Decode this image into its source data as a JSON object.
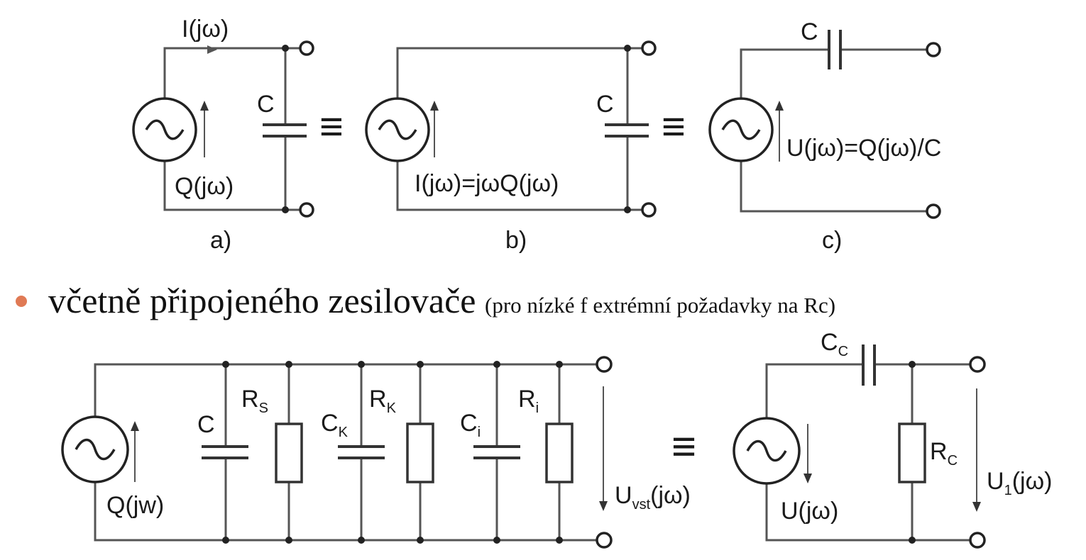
{
  "diagram_a": {
    "current_label": "I(jω)",
    "charge_label": "Q(jω)",
    "cap_label": "C",
    "caption": "a)"
  },
  "diagram_b": {
    "relation_label": "I(jω)=jωQ(jω)",
    "cap_label": "C",
    "caption": "b)"
  },
  "diagram_c": {
    "cap_label": "C",
    "voltage_label": "U(jω)=Q(jω)/C",
    "caption": "c)"
  },
  "equivalence_symbol": "≡",
  "bullet": {
    "main_text": "včetně připojeného zesilovače",
    "note_text": "(pro nízké f extrémní požadavky na Rc)"
  },
  "diagram_d": {
    "source_label": "Q(jw)",
    "c_label": "C",
    "rs_label": "R",
    "rs_sub": "S",
    "ck_label": "C",
    "ck_sub": "K",
    "rk_label": "R",
    "rk_sub": "K",
    "ci_label": "C",
    "ci_sub": "i",
    "ri_label": "R",
    "ri_sub": "i",
    "out_label": "U",
    "out_sub": "vst",
    "out_suffix": "(jω)"
  },
  "diagram_e": {
    "cc_label": "C",
    "cc_sub": "C",
    "source_label": "U(jω)",
    "rc_label": "R",
    "rc_sub": "C",
    "out_label": "U",
    "out_sub": "1",
    "out_suffix": "(jω)"
  },
  "colors": {
    "bullet": "#e07a55",
    "ink": "#1a1a1a",
    "wire": "#555555"
  }
}
